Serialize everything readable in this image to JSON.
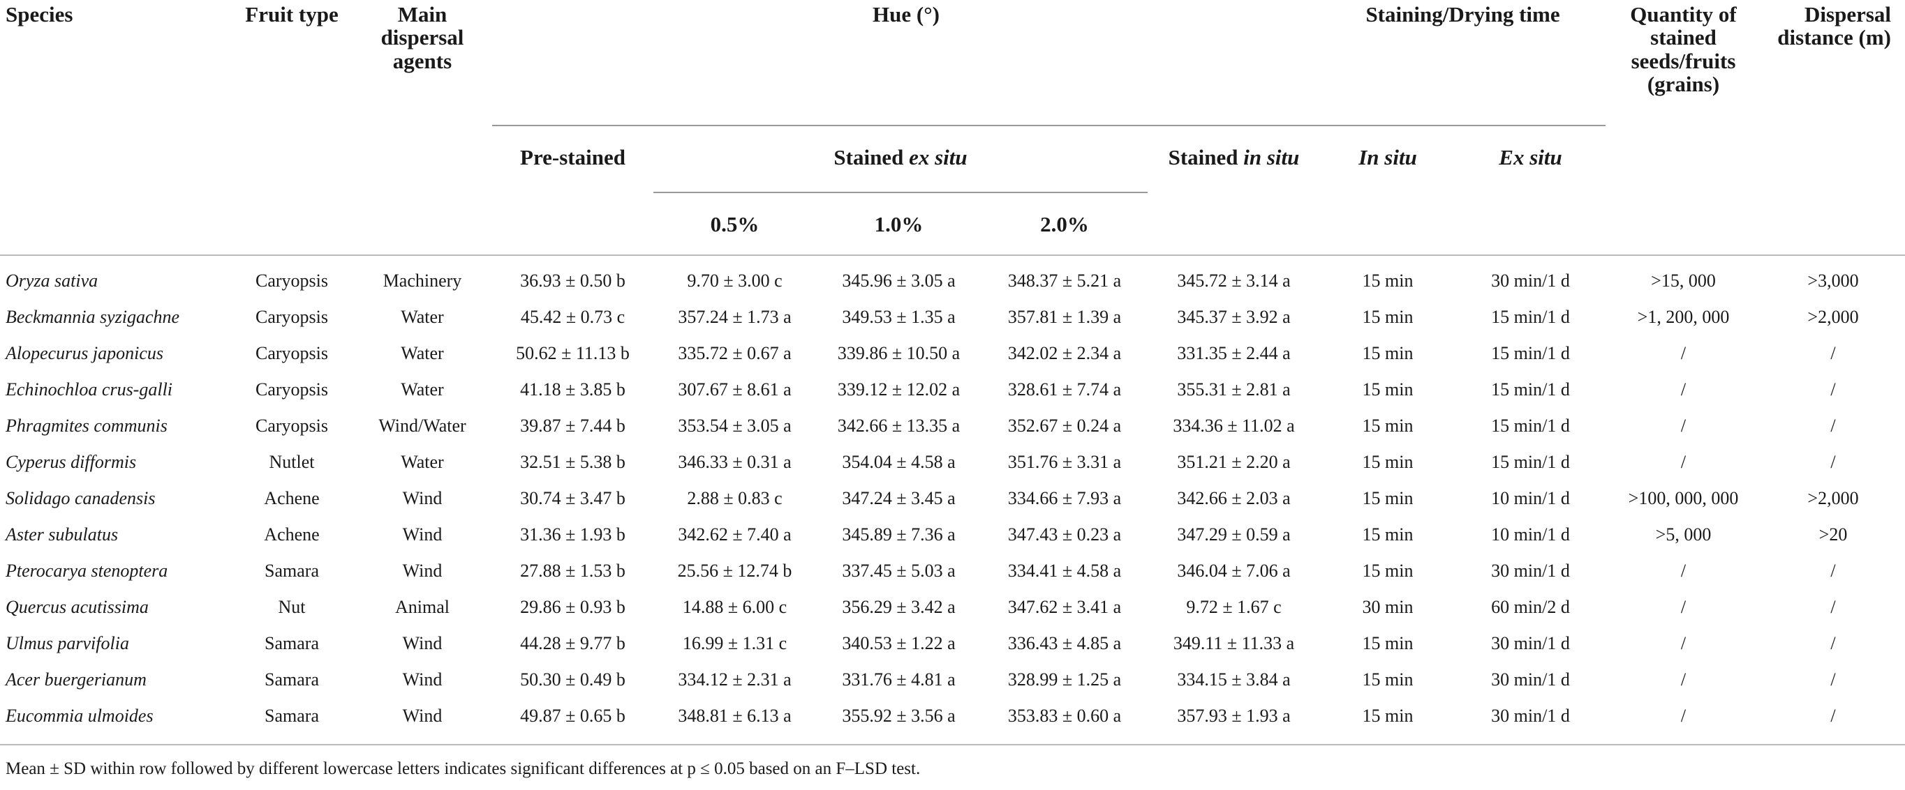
{
  "table": {
    "header": {
      "species": "Species",
      "fruit_type": "Fruit type",
      "main_dispersal_agents": "Main dispersal agents",
      "hue": "Hue (°)",
      "staining_drying_time": "Staining/Drying time",
      "quantity": "Quantity of stained seeds/fruits (grains)",
      "dispersal_distance": "Dispersal distance (m)",
      "pre_stained": "Pre-stained",
      "stained_ex_situ": [
        "Stained",
        "ex situ"
      ],
      "stained_in_situ": [
        "Stained",
        "in situ"
      ],
      "in_situ": "In situ",
      "ex_situ": "Ex situ",
      "concentrations": [
        "0.5%",
        "1.0%",
        "2.0%"
      ]
    },
    "rows": [
      [
        "Oryza sativa",
        "Caryopsis",
        "Machinery",
        "36.93 ± 0.50 b",
        "9.70 ± 3.00 c",
        "345.96 ± 3.05 a",
        "348.37 ± 5.21 a",
        "345.72 ± 3.14 a",
        "15 min",
        "30 min/1 d",
        ">15, 000",
        ">3,000"
      ],
      [
        "Beckmannia syzigachne",
        "Caryopsis",
        "Water",
        "45.42 ± 0.73 c",
        "357.24 ± 1.73 a",
        "349.53 ± 1.35 a",
        "357.81 ± 1.39 a",
        "345.37 ± 3.92 a",
        "15 min",
        "15 min/1 d",
        ">1, 200, 000",
        ">2,000"
      ],
      [
        "Alopecurus japonicus",
        "Caryopsis",
        "Water",
        "50.62 ± 11.13 b",
        "335.72 ± 0.67 a",
        "339.86 ± 10.50 a",
        "342.02 ± 2.34 a",
        "331.35 ± 2.44 a",
        "15 min",
        "15 min/1 d",
        "/",
        "/"
      ],
      [
        "Echinochloa crus-galli",
        "Caryopsis",
        "Water",
        "41.18 ± 3.85 b",
        "307.67 ± 8.61 a",
        "339.12 ± 12.02 a",
        "328.61 ± 7.74 a",
        "355.31 ± 2.81 a",
        "15 min",
        "15 min/1 d",
        "/",
        "/"
      ],
      [
        "Phragmites communis",
        "Caryopsis",
        "Wind/Water",
        "39.87 ± 7.44 b",
        "353.54 ± 3.05 a",
        "342.66 ± 13.35 a",
        "352.67 ± 0.24 a",
        "334.36 ± 11.02 a",
        "15 min",
        "15 min/1 d",
        "/",
        "/"
      ],
      [
        "Cyperus difformis",
        "Nutlet",
        "Water",
        "32.51 ± 5.38 b",
        "346.33 ± 0.31 a",
        "354.04 ± 4.58 a",
        "351.76 ± 3.31 a",
        "351.21 ± 2.20 a",
        "15 min",
        "15 min/1 d",
        "/",
        "/"
      ],
      [
        "Solidago canadensis",
        "Achene",
        "Wind",
        "30.74 ± 3.47 b",
        "2.88 ± 0.83 c",
        "347.24 ± 3.45 a",
        "334.66 ± 7.93 a",
        "342.66 ± 2.03 a",
        "15 min",
        "10 min/1 d",
        ">100, 000, 000",
        ">2,000"
      ],
      [
        "Aster subulatus",
        "Achene",
        "Wind",
        "31.36 ± 1.93 b",
        "342.62 ± 7.40 a",
        "345.89 ± 7.36 a",
        "347.43 ± 0.23 a",
        "347.29 ± 0.59 a",
        "15 min",
        "10 min/1 d",
        ">5, 000",
        ">20"
      ],
      [
        "Pterocarya stenoptera",
        "Samara",
        "Wind",
        "27.88 ± 1.53 b",
        "25.56 ± 12.74 b",
        "337.45 ± 5.03 a",
        "334.41 ± 4.58 a",
        "346.04 ± 7.06 a",
        "15 min",
        "30 min/1 d",
        "/",
        "/"
      ],
      [
        "Quercus acutissima",
        "Nut",
        "Animal",
        "29.86 ± 0.93 b",
        "14.88 ± 6.00 c",
        "356.29 ± 3.42 a",
        "347.62 ± 3.41 a",
        "9.72 ± 1.67 c",
        "30 min",
        "60 min/2 d",
        "/",
        "/"
      ],
      [
        "Ulmus parvifolia",
        "Samara",
        "Wind",
        "44.28 ± 9.77 b",
        "16.99 ± 1.31 c",
        "340.53 ± 1.22 a",
        "336.43 ± 4.85 a",
        "349.11 ± 11.33 a",
        "15 min",
        "30 min/1 d",
        "/",
        "/"
      ],
      [
        "Acer buergerianum",
        "Samara",
        "Wind",
        "50.30 ± 0.49 b",
        "334.12 ± 2.31 a",
        "331.76 ± 4.81 a",
        "328.99 ± 1.25 a",
        "334.15 ± 3.84 a",
        "15 min",
        "30 min/1 d",
        "/",
        "/"
      ],
      [
        "Eucommia ulmoides",
        "Samara",
        "Wind",
        "49.87 ± 0.65 b",
        "348.81 ± 6.13 a",
        "355.92 ± 3.56 a",
        "353.83 ± 0.60 a",
        "357.93 ± 1.93 a",
        "15 min",
        "30 min/1 d",
        "/",
        "/"
      ]
    ],
    "footnote": "Mean ± SD within row followed by different lowercase letters indicates significant differences at p ≤ 0.05 based on an F–LSD test."
  }
}
